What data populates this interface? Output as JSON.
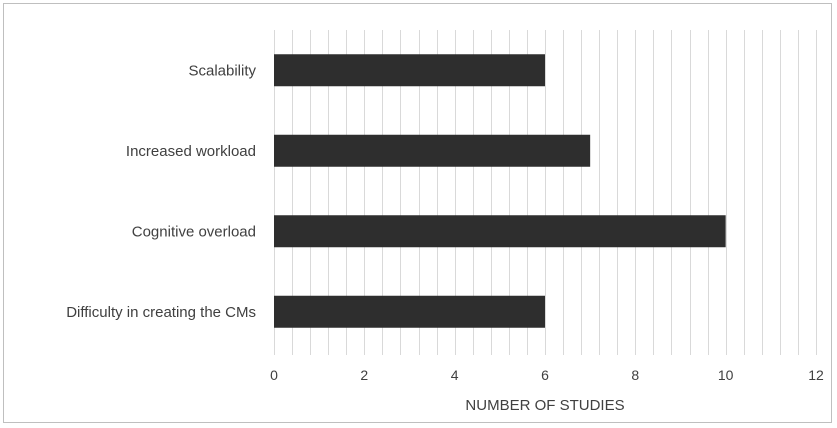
{
  "chart_data": {
    "type": "bar",
    "orientation": "horizontal",
    "categories": [
      "Difficulty in creating the CMs",
      "Cognitive overload",
      "Increased workload",
      "Scalability"
    ],
    "values": [
      6,
      10,
      7,
      6
    ],
    "xlabel": "NUMBER OF STUDIES",
    "ylabel": "",
    "xlim": [
      0,
      12
    ],
    "xticks": [
      "0",
      "2",
      "4",
      "6",
      "8",
      "10",
      "12"
    ],
    "grid": "vertical major and minor gridlines",
    "legend": "none",
    "colors": {
      "bar": "#2e2e2e",
      "grid": "#d9d9d9",
      "text": "#404040",
      "border": "#bfbfbf"
    }
  }
}
